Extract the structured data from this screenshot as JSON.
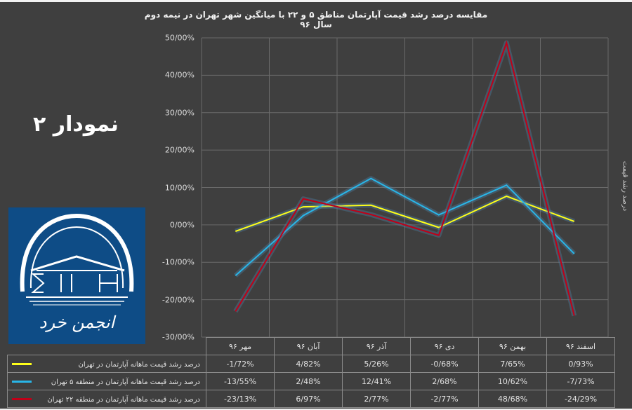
{
  "chart_title": "مقایسه درصد رشد قیمت آپارتمان مناطق ۵ و ۲۲ با میانگین شهر تهران در نیمه دوم سال ۹۶",
  "side_label": "نمودار ۲",
  "logo": {
    "name": "انجمن خرد",
    "text": "انجمن خرد"
  },
  "y_axis_title": "درصد رشد قیمت",
  "y_ticks": [
    "50/00%",
    "40/00%",
    "30/00%",
    "20/00%",
    "10/00%",
    "0/00%",
    "-10/00%",
    "-20/00%",
    "-30/00%"
  ],
  "table": {
    "headers": [
      "مهر ۹۶",
      "آبان ۹۶",
      "آذر ۹۶",
      "دی ۹۶",
      "بهمن ۹۶",
      "اسفند ۹۶"
    ],
    "rows": [
      {
        "label": "درصد رشد قیمت ماهانه آپارتمان در تهران",
        "color": "#ffff1a",
        "values": [
          "-1/72%",
          "4/82%",
          "5/26%",
          "-0/68%",
          "7/65%",
          "0/93%"
        ]
      },
      {
        "label": "درصد رشد قیمت ماهانه آپارتمان در منطقه ۵ تهران",
        "color": "#29b6e8",
        "values": [
          "-13/55%",
          "2/48%",
          "12/41%",
          "2/68%",
          "10/62%",
          "-7/73%"
        ]
      },
      {
        "label": "درصد رشد قیمت ماهانه آپارتمان در منطقه ۲۲ تهران",
        "color": "#c00018",
        "values": [
          "-23/13%",
          "6/97%",
          "2/77%",
          "-2/77%",
          "48/68%",
          "-24/29%"
        ]
      }
    ]
  },
  "chart_data": {
    "type": "line",
    "title": "مقایسه درصد رشد قیمت آپارتمان مناطق ۵ و ۲۲ با میانگین شهر تهران در نیمه دوم سال ۹۶",
    "xlabel": "",
    "ylabel": "درصد رشد قیمت",
    "categories": [
      "مهر ۹۶",
      "آبان ۹۶",
      "آذر ۹۶",
      "دی ۹۶",
      "بهمن ۹۶",
      "اسفند ۹۶"
    ],
    "series": [
      {
        "name": "درصد رشد قیمت ماهانه آپارتمان در تهران",
        "color": "#ffff1a",
        "values": [
          -1.72,
          4.82,
          5.26,
          -0.68,
          7.65,
          0.93
        ]
      },
      {
        "name": "درصد رشد قیمت ماهانه آپارتمان در منطقه ۵ تهران",
        "color": "#29b6e8",
        "values": [
          -13.55,
          2.48,
          12.41,
          2.68,
          10.62,
          -7.73
        ]
      },
      {
        "name": "درصد رشد قیمت ماهانه آپارتمان در منطقه ۲۲ تهران",
        "color": "#c00018",
        "values": [
          -23.13,
          6.97,
          2.77,
          -2.77,
          48.68,
          -24.29
        ]
      }
    ],
    "ylim": [
      -30,
      50
    ],
    "ytick_step": 10,
    "grid": true,
    "legend_position": "data-table-bottom"
  }
}
